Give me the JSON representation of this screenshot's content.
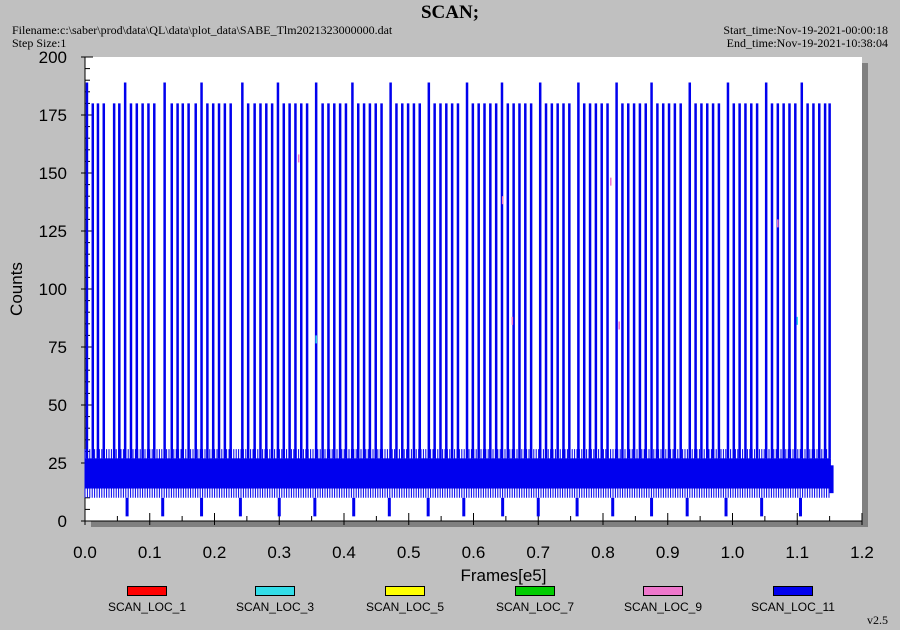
{
  "header": {
    "title": "SCAN;",
    "filename_line": "Filename:c:\\saber\\prod\\data\\QL\\data\\plot_data\\SABE_Tlm2021323000000.dat",
    "step_line": "Step Size:1",
    "start_line": "Start_time:Nov-19-2021-00:00:18",
    "end_line": "End_time:Nov-19-2021-10:38:04"
  },
  "version": "v2.5",
  "chart_data": {
    "type": "line",
    "title": "SCAN;",
    "xlabel": "Frames[e5]",
    "ylabel": "Counts",
    "xlim": [
      0.0,
      1.2
    ],
    "ylim": [
      0,
      200
    ],
    "x_ticks": [
      "0.0",
      "0.1",
      "0.2",
      "0.3",
      "0.4",
      "0.5",
      "0.6",
      "0.7",
      "0.8",
      "0.9",
      "1.0",
      "1.1",
      "1.2"
    ],
    "y_ticks": [
      "0",
      "25",
      "50",
      "75",
      "100",
      "125",
      "150",
      "175",
      "200"
    ],
    "grid": false,
    "legend_position": "bottom",
    "series": [
      {
        "name": "SCAN_LOC_1",
        "color": "#ff0000"
      },
      {
        "name": "SCAN_LOC_3",
        "color": "#33dde8"
      },
      {
        "name": "SCAN_LOC_5",
        "color": "#ffff00"
      },
      {
        "name": "SCAN_LOC_7",
        "color": "#00cc00"
      },
      {
        "name": "SCAN_LOC_9",
        "color": "#ee77cc"
      },
      {
        "name": "SCAN_LOC_11",
        "color": "#0000ee",
        "baseline_band": {
          "x_range": [
            0.0,
            1.152
          ],
          "low": 10,
          "high": 31,
          "dense_low": 14,
          "dense_high": 27
        },
        "spikes": [
          {
            "x": 0.003,
            "y": 189
          },
          {
            "x": 0.012,
            "y": 180
          },
          {
            "x": 0.02,
            "y": 180
          },
          {
            "x": 0.029,
            "y": 180
          },
          {
            "x": 0.045,
            "y": 180
          },
          {
            "x": 0.053,
            "y": 180
          },
          {
            "x": 0.062,
            "y": 189
          },
          {
            "x": 0.071,
            "y": 180
          },
          {
            "x": 0.08,
            "y": 180
          },
          {
            "x": 0.089,
            "y": 180
          },
          {
            "x": 0.098,
            "y": 180
          },
          {
            "x": 0.107,
            "y": 180
          },
          {
            "x": 0.123,
            "y": 189
          },
          {
            "x": 0.134,
            "y": 180
          },
          {
            "x": 0.143,
            "y": 180
          },
          {
            "x": 0.151,
            "y": 180
          },
          {
            "x": 0.16,
            "y": 180
          },
          {
            "x": 0.171,
            "y": 180
          },
          {
            "x": 0.18,
            "y": 189
          },
          {
            "x": 0.189,
            "y": 180
          },
          {
            "x": 0.198,
            "y": 180
          },
          {
            "x": 0.207,
            "y": 180
          },
          {
            "x": 0.216,
            "y": 180
          },
          {
            "x": 0.225,
            "y": 180
          },
          {
            "x": 0.243,
            "y": 189
          },
          {
            "x": 0.252,
            "y": 180
          },
          {
            "x": 0.262,
            "y": 180
          },
          {
            "x": 0.271,
            "y": 180
          },
          {
            "x": 0.28,
            "y": 180
          },
          {
            "x": 0.289,
            "y": 180
          },
          {
            "x": 0.298,
            "y": 189
          },
          {
            "x": 0.307,
            "y": 180
          },
          {
            "x": 0.316,
            "y": 180
          },
          {
            "x": 0.325,
            "y": 180
          },
          {
            "x": 0.334,
            "y": 180
          },
          {
            "x": 0.343,
            "y": 180
          },
          {
            "x": 0.357,
            "y": 189
          },
          {
            "x": 0.367,
            "y": 180
          },
          {
            "x": 0.376,
            "y": 180
          },
          {
            "x": 0.385,
            "y": 180
          },
          {
            "x": 0.394,
            "y": 180
          },
          {
            "x": 0.403,
            "y": 180
          },
          {
            "x": 0.413,
            "y": 189
          },
          {
            "x": 0.422,
            "y": 180
          },
          {
            "x": 0.431,
            "y": 180
          },
          {
            "x": 0.44,
            "y": 180
          },
          {
            "x": 0.449,
            "y": 180
          },
          {
            "x": 0.458,
            "y": 180
          },
          {
            "x": 0.472,
            "y": 189
          },
          {
            "x": 0.481,
            "y": 180
          },
          {
            "x": 0.49,
            "y": 180
          },
          {
            "x": 0.499,
            "y": 180
          },
          {
            "x": 0.508,
            "y": 180
          },
          {
            "x": 0.517,
            "y": 180
          },
          {
            "x": 0.531,
            "y": 189
          },
          {
            "x": 0.54,
            "y": 180
          },
          {
            "x": 0.549,
            "y": 180
          },
          {
            "x": 0.558,
            "y": 180
          },
          {
            "x": 0.567,
            "y": 180
          },
          {
            "x": 0.576,
            "y": 180
          },
          {
            "x": 0.59,
            "y": 189
          },
          {
            "x": 0.599,
            "y": 180
          },
          {
            "x": 0.608,
            "y": 180
          },
          {
            "x": 0.617,
            "y": 180
          },
          {
            "x": 0.626,
            "y": 180
          },
          {
            "x": 0.635,
            "y": 180
          },
          {
            "x": 0.644,
            "y": 189
          },
          {
            "x": 0.653,
            "y": 180
          },
          {
            "x": 0.662,
            "y": 180
          },
          {
            "x": 0.671,
            "y": 180
          },
          {
            "x": 0.68,
            "y": 180
          },
          {
            "x": 0.689,
            "y": 180
          },
          {
            "x": 0.703,
            "y": 189
          },
          {
            "x": 0.712,
            "y": 180
          },
          {
            "x": 0.721,
            "y": 180
          },
          {
            "x": 0.73,
            "y": 180
          },
          {
            "x": 0.739,
            "y": 180
          },
          {
            "x": 0.748,
            "y": 180
          },
          {
            "x": 0.762,
            "y": 189
          },
          {
            "x": 0.771,
            "y": 180
          },
          {
            "x": 0.78,
            "y": 180
          },
          {
            "x": 0.789,
            "y": 180
          },
          {
            "x": 0.798,
            "y": 180
          },
          {
            "x": 0.807,
            "y": 180
          },
          {
            "x": 0.821,
            "y": 189
          },
          {
            "x": 0.83,
            "y": 180
          },
          {
            "x": 0.839,
            "y": 180
          },
          {
            "x": 0.848,
            "y": 180
          },
          {
            "x": 0.857,
            "y": 180
          },
          {
            "x": 0.866,
            "y": 180
          },
          {
            "x": 0.875,
            "y": 189
          },
          {
            "x": 0.884,
            "y": 180
          },
          {
            "x": 0.893,
            "y": 180
          },
          {
            "x": 0.902,
            "y": 180
          },
          {
            "x": 0.911,
            "y": 180
          },
          {
            "x": 0.92,
            "y": 180
          },
          {
            "x": 0.934,
            "y": 189
          },
          {
            "x": 0.943,
            "y": 180
          },
          {
            "x": 0.952,
            "y": 180
          },
          {
            "x": 0.961,
            "y": 180
          },
          {
            "x": 0.97,
            "y": 180
          },
          {
            "x": 0.979,
            "y": 180
          },
          {
            "x": 0.993,
            "y": 189
          },
          {
            "x": 1.002,
            "y": 180
          },
          {
            "x": 1.011,
            "y": 180
          },
          {
            "x": 1.02,
            "y": 180
          },
          {
            "x": 1.029,
            "y": 180
          },
          {
            "x": 1.038,
            "y": 180
          },
          {
            "x": 1.052,
            "y": 189
          },
          {
            "x": 1.061,
            "y": 180
          },
          {
            "x": 1.07,
            "y": 180
          },
          {
            "x": 1.079,
            "y": 180
          },
          {
            "x": 1.088,
            "y": 180
          },
          {
            "x": 1.097,
            "y": 180
          },
          {
            "x": 1.107,
            "y": 189
          },
          {
            "x": 1.116,
            "y": 180
          },
          {
            "x": 1.125,
            "y": 180
          },
          {
            "x": 1.134,
            "y": 180
          },
          {
            "x": 1.143,
            "y": 180
          },
          {
            "x": 1.15,
            "y": 180
          }
        ],
        "dips": [
          0.065,
          0.12,
          0.18,
          0.24,
          0.3,
          0.355,
          0.415,
          0.47,
          0.53,
          0.585,
          0.645,
          0.7,
          0.76,
          0.815,
          0.875,
          0.93,
          0.99,
          1.045,
          1.105
        ]
      }
    ],
    "minor_marks": [
      {
        "series": "SCAN_LOC_9",
        "x": 0.33,
        "y": 158
      },
      {
        "series": "SCAN_LOC_9",
        "x": 0.645,
        "y": 140
      },
      {
        "series": "SCAN_LOC_9",
        "x": 0.66,
        "y": 88
      },
      {
        "series": "SCAN_LOC_9",
        "x": 0.812,
        "y": 148
      },
      {
        "series": "SCAN_LOC_9",
        "x": 0.825,
        "y": 86
      },
      {
        "series": "SCAN_LOC_9",
        "x": 1.07,
        "y": 130
      },
      {
        "series": "SCAN_LOC_3",
        "x": 0.357,
        "y": 80
      },
      {
        "series": "SCAN_LOC_3",
        "x": 1.1,
        "y": 88
      }
    ]
  }
}
